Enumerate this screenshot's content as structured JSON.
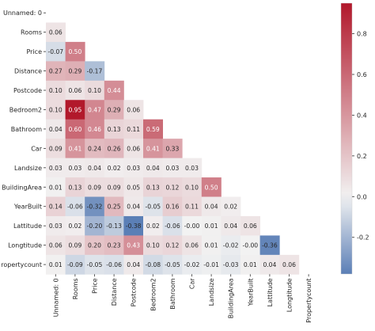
{
  "chart_data": {
    "type": "heatmap",
    "title": "",
    "labels": [
      "Unnamed: 0",
      "Rooms",
      "Price",
      "Distance",
      "Postcode",
      "Bedroom2",
      "Bathroom",
      "Car",
      "Landsize",
      "BuildingArea",
      "YearBuilt",
      "Lattitude",
      "Longtitude",
      "Propertycount"
    ],
    "row_labels_display": [
      "Unnamed: 0",
      "Rooms",
      "Price",
      "Distance",
      "Postcode",
      "Bedroom2",
      "Bathroom",
      "Car",
      "Landsize",
      "BuildingArea",
      "YearBuilt",
      "Lattitude",
      "Longtitude",
      "ropertycount"
    ],
    "values": [
      [],
      [
        "0.06"
      ],
      [
        "-0.07",
        "0.50"
      ],
      [
        "0.27",
        "0.29",
        "-0.17"
      ],
      [
        "0.10",
        "0.06",
        "0.10",
        "0.44"
      ],
      [
        "0.10",
        "0.95",
        "0.47",
        "0.29",
        "0.06"
      ],
      [
        "0.04",
        "0.60",
        "0.46",
        "0.13",
        "0.11",
        "0.59"
      ],
      [
        "0.09",
        "0.41",
        "0.24",
        "0.26",
        "0.06",
        "0.41",
        "0.33"
      ],
      [
        "0.03",
        "0.03",
        "0.04",
        "0.02",
        "0.03",
        "0.04",
        "0.03",
        "0.03"
      ],
      [
        "0.01",
        "0.13",
        "0.09",
        "0.09",
        "0.05",
        "0.13",
        "0.12",
        "0.10",
        "0.50"
      ],
      [
        "0.14",
        "-0.06",
        "-0.32",
        "0.25",
        "0.04",
        "-0.05",
        "0.16",
        "0.11",
        "0.04",
        "0.02"
      ],
      [
        "0.03",
        "0.02",
        "-0.20",
        "-0.13",
        "-0.38",
        "0.02",
        "-0.06",
        "-0.00",
        "0.01",
        "0.04",
        "0.06"
      ],
      [
        "0.06",
        "0.09",
        "0.20",
        "0.23",
        "0.43",
        "0.10",
        "0.12",
        "0.06",
        "0.01",
        "-0.02",
        "-0.00",
        "-0.36"
      ],
      [
        "0.01",
        "-0.09",
        "-0.05",
        "-0.06",
        "0.04",
        "-0.08",
        "-0.05",
        "-0.02",
        "-0.01",
        "-0.03",
        "0.01",
        "0.04",
        "0.06"
      ]
    ],
    "colorbar": {
      "vmin": -0.38,
      "vmax": 0.95,
      "ticks": [
        "-0.2",
        "0.0",
        "0.2",
        "0.4",
        "0.6",
        "0.8"
      ],
      "low_color": "#5b7fb6",
      "mid_color": "#f2f2f2",
      "high_color": "#b2182b"
    }
  }
}
